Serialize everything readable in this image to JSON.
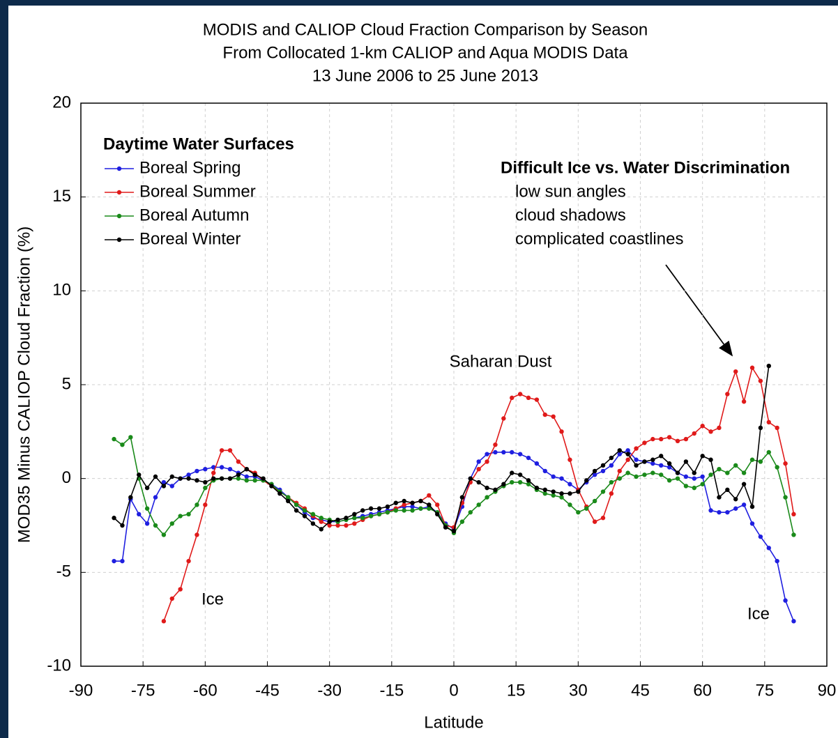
{
  "chart_data": {
    "type": "line",
    "title": [
      "MODIS and CALIOP Cloud Fraction Comparison by Season",
      "From Collocated 1-km CALIOP and Aqua MODIS Data",
      "13 June 2006 to 25 June 2013"
    ],
    "x_label": "Latitude",
    "y_label": "MOD35 Minus CALIOP Cloud Fraction (%)",
    "xlim": [
      -90,
      90
    ],
    "xticks": [
      -90,
      -75,
      -60,
      -45,
      -30,
      -15,
      0,
      15,
      30,
      45,
      60,
      75,
      90
    ],
    "ylim": [
      -10,
      20
    ],
    "yticks": [
      -10,
      -5,
      0,
      5,
      10,
      15,
      20
    ],
    "grid": true,
    "legend_title": "Daytime Water Surfaces",
    "legend": "upper left",
    "annotations": [
      "Saharan Dust",
      "Ice",
      "Ice"
    ],
    "note": {
      "title": "Difficult Ice vs. Water Discrimination",
      "lines": [
        "low sun angles",
        "cloud shadows",
        "complicated coastlines"
      ]
    },
    "x": [
      -82,
      -80,
      -78,
      -76,
      -74,
      -72,
      -70,
      -68,
      -66,
      -64,
      -62,
      -60,
      -58,
      -56,
      -54,
      -52,
      -50,
      -48,
      -46,
      -44,
      -42,
      -40,
      -38,
      -36,
      -34,
      -32,
      -30,
      -28,
      -26,
      -24,
      -22,
      -20,
      -18,
      -16,
      -14,
      -12,
      -10,
      -8,
      -6,
      -4,
      -2,
      0,
      2,
      4,
      6,
      8,
      10,
      12,
      14,
      16,
      18,
      20,
      22,
      24,
      26,
      28,
      30,
      32,
      34,
      36,
      38,
      40,
      42,
      44,
      46,
      48,
      50,
      52,
      54,
      56,
      58,
      60,
      62,
      64,
      66,
      68,
      70,
      72,
      74,
      76,
      78,
      80,
      82
    ],
    "series": [
      {
        "name": "Boreal Spring",
        "color": "#1f1fe0",
        "values": [
          -4.4,
          -4.4,
          -1.1,
          -1.9,
          -2.4,
          -1.0,
          -0.2,
          -0.4,
          0.0,
          0.2,
          0.4,
          0.5,
          0.6,
          0.6,
          0.5,
          0.3,
          0.1,
          0.1,
          -0.1,
          -0.3,
          -0.6,
          -1.0,
          -1.4,
          -1.8,
          -2.1,
          -2.2,
          -2.3,
          -2.3,
          -2.2,
          -2.1,
          -2.0,
          -1.9,
          -1.8,
          -1.7,
          -1.6,
          -1.5,
          -1.5,
          -1.6,
          -1.5,
          -1.8,
          -2.4,
          -2.7,
          -1.5,
          0.0,
          0.9,
          1.3,
          1.4,
          1.4,
          1.4,
          1.3,
          1.1,
          0.8,
          0.4,
          0.1,
          0.0,
          -0.3,
          -0.6,
          -0.2,
          0.2,
          0.4,
          0.7,
          1.3,
          1.5,
          1.0,
          0.9,
          0.8,
          0.7,
          0.6,
          0.3,
          0.1,
          0.0,
          0.1,
          -1.7,
          -1.8,
          -1.8,
          -1.6,
          -1.4,
          -2.4,
          -3.1,
          -3.7,
          -4.4,
          -6.5,
          -7.6
        ]
      },
      {
        "name": "Boreal Summer",
        "color": "#e01a1a",
        "values": [
          null,
          null,
          null,
          null,
          null,
          null,
          -7.6,
          -6.4,
          -5.9,
          -4.4,
          -3.0,
          -1.4,
          0.3,
          1.5,
          1.5,
          0.9,
          0.5,
          0.3,
          -0.1,
          -0.4,
          -0.7,
          -1.0,
          -1.3,
          -1.6,
          -2.0,
          -2.3,
          -2.5,
          -2.5,
          -2.5,
          -2.4,
          -2.2,
          -2.0,
          -1.9,
          -1.8,
          -1.6,
          -1.4,
          -1.3,
          -1.2,
          -0.9,
          -1.4,
          -2.5,
          -2.6,
          -1.3,
          -0.2,
          0.5,
          0.9,
          1.8,
          3.2,
          4.3,
          4.5,
          4.3,
          4.2,
          3.4,
          3.3,
          2.5,
          1.0,
          -0.6,
          -1.5,
          -2.3,
          -2.1,
          -0.8,
          0.4,
          1.0,
          1.6,
          1.9,
          2.1,
          2.1,
          2.2,
          2.0,
          2.1,
          2.4,
          2.8,
          2.5,
          2.7,
          4.5,
          5.7,
          4.1,
          5.9,
          5.2,
          3.0,
          2.7,
          0.8,
          -1.9
        ]
      },
      {
        "name": "Boreal Autumn",
        "color": "#1a8a1a",
        "values": [
          2.1,
          1.8,
          2.2,
          0.0,
          -1.6,
          -2.5,
          -3.0,
          -2.4,
          -2.0,
          -1.9,
          -1.4,
          -0.5,
          -0.1,
          0.0,
          0.0,
          0.0,
          -0.1,
          -0.1,
          -0.1,
          -0.3,
          -0.7,
          -1.0,
          -1.4,
          -1.7,
          -1.9,
          -2.1,
          -2.2,
          -2.3,
          -2.2,
          -2.1,
          -2.1,
          -2.0,
          -1.9,
          -1.8,
          -1.7,
          -1.7,
          -1.7,
          -1.6,
          -1.6,
          -1.8,
          -2.5,
          -2.9,
          -2.3,
          -1.8,
          -1.4,
          -1.0,
          -0.7,
          -0.4,
          -0.2,
          -0.2,
          -0.3,
          -0.6,
          -0.8,
          -0.9,
          -1.0,
          -1.4,
          -1.8,
          -1.6,
          -1.2,
          -0.7,
          -0.2,
          0.0,
          0.3,
          0.1,
          0.2,
          0.3,
          0.2,
          -0.1,
          0.0,
          -0.4,
          -0.5,
          -0.3,
          0.2,
          0.5,
          0.3,
          0.7,
          0.3,
          1.0,
          0.9,
          1.4,
          0.6,
          -1.0,
          -3.0
        ]
      },
      {
        "name": "Boreal Winter",
        "color": "#000000",
        "values": [
          -2.1,
          -2.5,
          -1.0,
          0.2,
          -0.5,
          0.1,
          -0.4,
          0.1,
          0.0,
          0.0,
          -0.1,
          -0.2,
          0.0,
          0.0,
          0.0,
          0.2,
          0.5,
          0.2,
          0.0,
          -0.4,
          -0.8,
          -1.2,
          -1.7,
          -2.0,
          -2.4,
          -2.7,
          -2.3,
          -2.2,
          -2.1,
          -1.9,
          -1.7,
          -1.6,
          -1.6,
          -1.5,
          -1.3,
          -1.2,
          -1.3,
          -1.2,
          -1.4,
          -1.9,
          -2.6,
          -2.8,
          -1.0,
          0.0,
          -0.2,
          -0.5,
          -0.6,
          -0.3,
          0.3,
          0.2,
          -0.1,
          -0.5,
          -0.6,
          -0.7,
          -0.8,
          -0.8,
          -0.7,
          -0.1,
          0.4,
          0.7,
          1.1,
          1.5,
          1.3,
          0.7,
          0.9,
          1.0,
          1.2,
          0.8,
          0.3,
          0.9,
          0.3,
          1.2,
          1.0,
          -1.0,
          -0.6,
          -1.1,
          -0.3,
          -1.5,
          2.7,
          6.0,
          null,
          null,
          null
        ]
      }
    ]
  }
}
